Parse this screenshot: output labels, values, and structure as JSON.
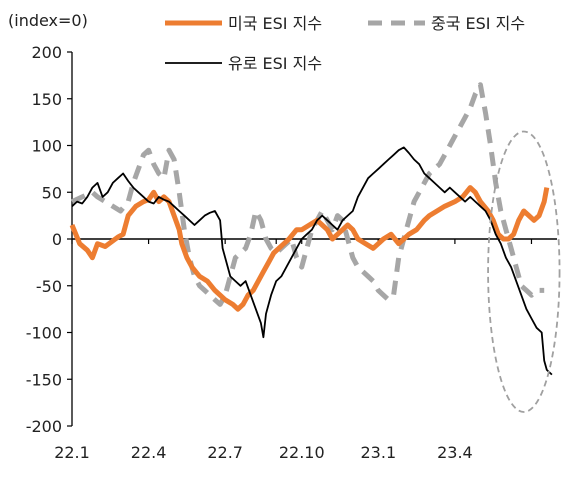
{
  "chart_data": {
    "type": "line",
    "unit_label": "(index=0)",
    "ylim": [
      -200,
      200
    ],
    "yticks": [
      200,
      150,
      100,
      50,
      0,
      -50,
      -100,
      -150,
      -200
    ],
    "ytick_labels": [
      "200",
      "150",
      "100",
      "50",
      "0",
      "-50",
      "-100",
      "-150",
      "-200"
    ],
    "xlim": [
      0,
      19
    ],
    "xticks": [
      0,
      3,
      6,
      9,
      12,
      15
    ],
    "xtick_labels": [
      "22.1",
      "22.4",
      "22.7",
      "22.10",
      "23.1",
      "23.4"
    ],
    "x_unit": "months since 22.1",
    "grid": false,
    "legend_position": "top",
    "highlight": {
      "type": "dashed-ellipse",
      "x_range": [
        16.3,
        19.1
      ],
      "y_range": [
        -185,
        115
      ],
      "color": "#a0a0a0"
    },
    "series": [
      {
        "name": "미국 ESI 지수",
        "color": "#ED7D31",
        "style": "solid-thick",
        "points": [
          [
            0.0,
            15
          ],
          [
            0.3,
            -5
          ],
          [
            0.6,
            -12
          ],
          [
            0.8,
            -20
          ],
          [
            1.0,
            -5
          ],
          [
            1.3,
            -8
          ],
          [
            1.6,
            -2
          ],
          [
            1.8,
            2
          ],
          [
            2.0,
            5
          ],
          [
            2.2,
            25
          ],
          [
            2.5,
            35
          ],
          [
            2.8,
            40
          ],
          [
            3.0,
            42
          ],
          [
            3.2,
            50
          ],
          [
            3.4,
            40
          ],
          [
            3.6,
            45
          ],
          [
            3.8,
            40
          ],
          [
            4.0,
            25
          ],
          [
            4.2,
            10
          ],
          [
            4.3,
            -5
          ],
          [
            4.5,
            -20
          ],
          [
            4.7,
            -30
          ],
          [
            5.0,
            -40
          ],
          [
            5.3,
            -45
          ],
          [
            5.6,
            -55
          ],
          [
            5.8,
            -60
          ],
          [
            6.0,
            -65
          ],
          [
            6.3,
            -70
          ],
          [
            6.5,
            -75
          ],
          [
            6.7,
            -70
          ],
          [
            6.9,
            -60
          ],
          [
            7.1,
            -55
          ],
          [
            7.3,
            -45
          ],
          [
            7.5,
            -35
          ],
          [
            7.7,
            -25
          ],
          [
            7.9,
            -15
          ],
          [
            8.1,
            -10
          ],
          [
            8.3,
            -5
          ],
          [
            8.5,
            0
          ],
          [
            8.8,
            10
          ],
          [
            9.0,
            10
          ],
          [
            9.3,
            15
          ],
          [
            9.6,
            20
          ],
          [
            9.8,
            15
          ],
          [
            10.0,
            10
          ],
          [
            10.2,
            0
          ],
          [
            10.4,
            5
          ],
          [
            10.6,
            10
          ],
          [
            10.8,
            15
          ],
          [
            11.0,
            10
          ],
          [
            11.2,
            0
          ],
          [
            11.5,
            -5
          ],
          [
            11.8,
            -10
          ],
          [
            12.0,
            -5
          ],
          [
            12.2,
            0
          ],
          [
            12.5,
            5
          ],
          [
            12.8,
            -5
          ],
          [
            13.0,
            0
          ],
          [
            13.2,
            5
          ],
          [
            13.5,
            10
          ],
          [
            13.8,
            20
          ],
          [
            14.0,
            25
          ],
          [
            14.3,
            30
          ],
          [
            14.6,
            35
          ],
          [
            15.0,
            40
          ],
          [
            15.3,
            45
          ],
          [
            15.6,
            55
          ],
          [
            15.8,
            50
          ],
          [
            16.0,
            40
          ],
          [
            16.3,
            30
          ],
          [
            16.5,
            20
          ],
          [
            16.7,
            5
          ],
          [
            16.9,
            0
          ],
          [
            17.1,
            0
          ],
          [
            17.3,
            5
          ],
          [
            17.5,
            20
          ],
          [
            17.7,
            30
          ],
          [
            17.9,
            25
          ],
          [
            18.1,
            20
          ],
          [
            18.3,
            25
          ],
          [
            18.5,
            40
          ],
          [
            18.6,
            55
          ]
        ]
      },
      {
        "name": "중국 ESI 지수",
        "color": "#A6A6A6",
        "style": "dashed-thick",
        "points": [
          [
            0.0,
            40
          ],
          [
            0.4,
            45
          ],
          [
            0.8,
            50
          ],
          [
            1.0,
            45
          ],
          [
            1.3,
            40
          ],
          [
            1.6,
            35
          ],
          [
            1.9,
            30
          ],
          [
            2.2,
            40
          ],
          [
            2.4,
            60
          ],
          [
            2.6,
            75
          ],
          [
            2.8,
            90
          ],
          [
            3.0,
            95
          ],
          [
            3.2,
            80
          ],
          [
            3.4,
            70
          ],
          [
            3.6,
            65
          ],
          [
            3.8,
            95
          ],
          [
            4.0,
            85
          ],
          [
            4.2,
            50
          ],
          [
            4.4,
            10
          ],
          [
            4.6,
            -20
          ],
          [
            4.8,
            -40
          ],
          [
            5.0,
            -50
          ],
          [
            5.2,
            -55
          ],
          [
            5.4,
            -60
          ],
          [
            5.6,
            -65
          ],
          [
            5.8,
            -70
          ],
          [
            6.0,
            -60
          ],
          [
            6.2,
            -40
          ],
          [
            6.4,
            -20
          ],
          [
            6.6,
            -15
          ],
          [
            6.8,
            -10
          ],
          [
            7.0,
            5
          ],
          [
            7.2,
            30
          ],
          [
            7.4,
            20
          ],
          [
            7.6,
            0
          ],
          [
            7.8,
            -10
          ],
          [
            8.0,
            -15
          ],
          [
            8.2,
            -10
          ],
          [
            8.4,
            -5
          ],
          [
            8.6,
            0
          ],
          [
            8.8,
            -20
          ],
          [
            9.0,
            -30
          ],
          [
            9.2,
            -10
          ],
          [
            9.4,
            10
          ],
          [
            9.6,
            20
          ],
          [
            9.8,
            30
          ],
          [
            10.0,
            20
          ],
          [
            10.2,
            10
          ],
          [
            10.4,
            25
          ],
          [
            10.6,
            20
          ],
          [
            10.8,
            0
          ],
          [
            11.0,
            -20
          ],
          [
            11.2,
            -30
          ],
          [
            11.4,
            -35
          ],
          [
            11.6,
            -40
          ],
          [
            11.8,
            -45
          ],
          [
            12.0,
            -55
          ],
          [
            12.2,
            -60
          ],
          [
            12.4,
            -65
          ],
          [
            12.6,
            -60
          ],
          [
            12.8,
            -20
          ],
          [
            13.0,
            0
          ],
          [
            13.2,
            20
          ],
          [
            13.4,
            40
          ],
          [
            13.6,
            50
          ],
          [
            13.8,
            60
          ],
          [
            14.0,
            70
          ],
          [
            14.2,
            75
          ],
          [
            14.4,
            80
          ],
          [
            14.6,
            90
          ],
          [
            14.8,
            100
          ],
          [
            15.0,
            110
          ],
          [
            15.2,
            120
          ],
          [
            15.4,
            130
          ],
          [
            15.6,
            140
          ],
          [
            15.8,
            155
          ],
          [
            16.0,
            165
          ],
          [
            16.2,
            135
          ],
          [
            16.4,
            100
          ],
          [
            16.6,
            60
          ],
          [
            16.8,
            30
          ],
          [
            17.0,
            10
          ],
          [
            17.2,
            -10
          ],
          [
            17.4,
            -30
          ],
          [
            17.6,
            -50
          ],
          [
            17.8,
            -55
          ],
          [
            18.0,
            -60
          ],
          [
            18.2,
            -55
          ],
          [
            18.5,
            -55
          ]
        ]
      },
      {
        "name": "유로 ESI 지수",
        "color": "#000000",
        "style": "solid-thin",
        "points": [
          [
            0.0,
            35
          ],
          [
            0.2,
            40
          ],
          [
            0.4,
            38
          ],
          [
            0.6,
            45
          ],
          [
            0.8,
            55
          ],
          [
            1.0,
            60
          ],
          [
            1.2,
            45
          ],
          [
            1.4,
            50
          ],
          [
            1.6,
            60
          ],
          [
            1.8,
            65
          ],
          [
            2.0,
            70
          ],
          [
            2.2,
            62
          ],
          [
            2.4,
            55
          ],
          [
            2.6,
            50
          ],
          [
            2.8,
            45
          ],
          [
            3.0,
            40
          ],
          [
            3.2,
            38
          ],
          [
            3.4,
            45
          ],
          [
            3.6,
            42
          ],
          [
            3.8,
            40
          ],
          [
            4.0,
            35
          ],
          [
            4.2,
            30
          ],
          [
            4.4,
            25
          ],
          [
            4.6,
            20
          ],
          [
            4.8,
            15
          ],
          [
            5.0,
            20
          ],
          [
            5.2,
            25
          ],
          [
            5.4,
            28
          ],
          [
            5.6,
            30
          ],
          [
            5.8,
            20
          ],
          [
            5.9,
            -10
          ],
          [
            6.0,
            -20
          ],
          [
            6.2,
            -40
          ],
          [
            6.4,
            -45
          ],
          [
            6.6,
            -50
          ],
          [
            6.8,
            -45
          ],
          [
            7.0,
            -60
          ],
          [
            7.2,
            -75
          ],
          [
            7.4,
            -90
          ],
          [
            7.5,
            -105
          ],
          [
            7.6,
            -80
          ],
          [
            7.8,
            -60
          ],
          [
            8.0,
            -45
          ],
          [
            8.2,
            -40
          ],
          [
            8.4,
            -30
          ],
          [
            8.6,
            -20
          ],
          [
            8.8,
            -10
          ],
          [
            9.0,
            0
          ],
          [
            9.2,
            5
          ],
          [
            9.4,
            10
          ],
          [
            9.6,
            20
          ],
          [
            9.8,
            25
          ],
          [
            10.0,
            20
          ],
          [
            10.2,
            15
          ],
          [
            10.4,
            10
          ],
          [
            10.6,
            20
          ],
          [
            10.8,
            25
          ],
          [
            11.0,
            30
          ],
          [
            11.2,
            45
          ],
          [
            11.4,
            55
          ],
          [
            11.6,
            65
          ],
          [
            11.8,
            70
          ],
          [
            12.0,
            75
          ],
          [
            12.2,
            80
          ],
          [
            12.4,
            85
          ],
          [
            12.6,
            90
          ],
          [
            12.8,
            95
          ],
          [
            13.0,
            98
          ],
          [
            13.2,
            92
          ],
          [
            13.4,
            85
          ],
          [
            13.6,
            80
          ],
          [
            13.8,
            70
          ],
          [
            14.0,
            65
          ],
          [
            14.2,
            60
          ],
          [
            14.4,
            55
          ],
          [
            14.6,
            50
          ],
          [
            14.8,
            55
          ],
          [
            15.0,
            50
          ],
          [
            15.2,
            45
          ],
          [
            15.4,
            40
          ],
          [
            15.6,
            45
          ],
          [
            15.8,
            40
          ],
          [
            16.0,
            35
          ],
          [
            16.2,
            30
          ],
          [
            16.4,
            20
          ],
          [
            16.6,
            5
          ],
          [
            16.8,
            -5
          ],
          [
            17.0,
            -20
          ],
          [
            17.2,
            -30
          ],
          [
            17.4,
            -45
          ],
          [
            17.6,
            -60
          ],
          [
            17.8,
            -75
          ],
          [
            18.0,
            -85
          ],
          [
            18.2,
            -95
          ],
          [
            18.4,
            -100
          ],
          [
            18.5,
            -130
          ],
          [
            18.6,
            -140
          ],
          [
            18.8,
            -145
          ]
        ]
      }
    ]
  }
}
